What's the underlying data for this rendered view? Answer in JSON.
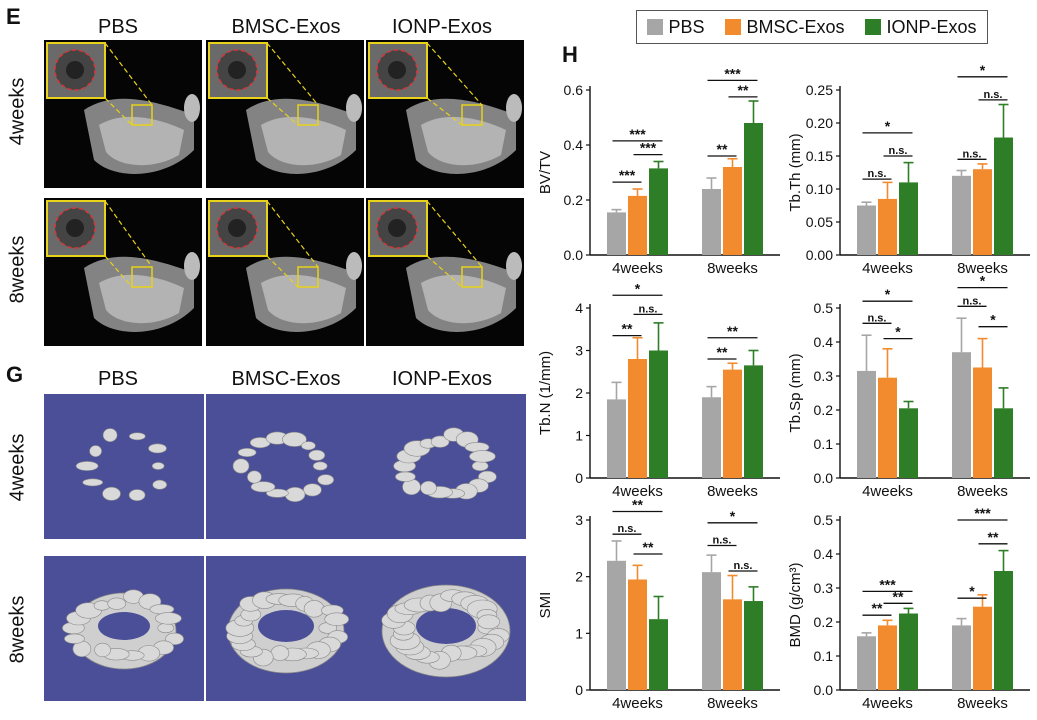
{
  "panel_letters": {
    "e": "E",
    "g": "G",
    "h": "H"
  },
  "image_panels": {
    "groups": [
      "PBS",
      "BMSC-Exos",
      "IONP-Exos"
    ],
    "timepoints": [
      "4weeks",
      "8weeks"
    ]
  },
  "legend": [
    {
      "name": "PBS",
      "color": "#a6a6a6"
    },
    {
      "name": "BMSC-Exos",
      "color": "#f28a2e"
    },
    {
      "name": "IONP-Exos",
      "color": "#2e7d27"
    }
  ],
  "chart_data": [
    {
      "type": "bar",
      "categories": [
        "4weeks",
        "8weeks"
      ],
      "ylabel": "BV/TV",
      "ylim": [
        0,
        0.6
      ],
      "yticks": [
        "0.0",
        "0.2",
        "0.4",
        "0.6"
      ],
      "series": [
        {
          "name": "PBS",
          "values": [
            0.155,
            0.24
          ],
          "err": [
            0.01,
            0.04
          ]
        },
        {
          "name": "BMSC-Exos",
          "values": [
            0.215,
            0.32
          ],
          "err": [
            0.025,
            0.03
          ]
        },
        {
          "name": "IONP-Exos",
          "values": [
            0.315,
            0.48
          ],
          "err": [
            0.025,
            0.08
          ]
        }
      ],
      "sig": [
        {
          "cat": 0,
          "from": 0,
          "to": 1,
          "y": 0.265,
          "label": "***"
        },
        {
          "cat": 0,
          "from": 1,
          "to": 2,
          "y": 0.365,
          "label": "***"
        },
        {
          "cat": 0,
          "from": 0,
          "to": 2,
          "y": 0.415,
          "label": "***"
        },
        {
          "cat": 1,
          "from": 0,
          "to": 1,
          "y": 0.36,
          "label": "**"
        },
        {
          "cat": 1,
          "from": 1,
          "to": 2,
          "y": 0.575,
          "label": "**"
        },
        {
          "cat": 1,
          "from": 0,
          "to": 2,
          "y": 0.635,
          "label": "***"
        }
      ]
    },
    {
      "type": "bar",
      "categories": [
        "4weeks",
        "8weeks"
      ],
      "ylabel": "Tb.Th (mm)",
      "ylim": [
        0,
        0.25
      ],
      "yticks": [
        "0.00",
        "0.05",
        "0.10",
        "0.15",
        "0.20",
        "0.25"
      ],
      "series": [
        {
          "name": "PBS",
          "values": [
            0.075,
            0.12
          ],
          "err": [
            0.005,
            0.008
          ]
        },
        {
          "name": "BMSC-Exos",
          "values": [
            0.085,
            0.13
          ],
          "err": [
            0.025,
            0.008
          ]
        },
        {
          "name": "IONP-Exos",
          "values": [
            0.11,
            0.178
          ],
          "err": [
            0.03,
            0.05
          ]
        }
      ],
      "sig": [
        {
          "cat": 0,
          "from": 0,
          "to": 1,
          "y": 0.115,
          "label": "n.s."
        },
        {
          "cat": 0,
          "from": 1,
          "to": 2,
          "y": 0.15,
          "label": "n.s."
        },
        {
          "cat": 0,
          "from": 0,
          "to": 2,
          "y": 0.185,
          "label": "*"
        },
        {
          "cat": 1,
          "from": 0,
          "to": 1,
          "y": 0.145,
          "label": "n.s."
        },
        {
          "cat": 1,
          "from": 1,
          "to": 2,
          "y": 0.235,
          "label": "n.s."
        },
        {
          "cat": 1,
          "from": 0,
          "to": 2,
          "y": 0.27,
          "label": "*"
        }
      ]
    },
    {
      "type": "bar",
      "categories": [
        "4weeks",
        "8weeks"
      ],
      "ylabel": "Tb.N (1/mm)",
      "ylim": [
        0,
        4
      ],
      "yticks": [
        "0",
        "1",
        "2",
        "3",
        "4"
      ],
      "series": [
        {
          "name": "PBS",
          "values": [
            1.85,
            1.9
          ],
          "err": [
            0.4,
            0.25
          ]
        },
        {
          "name": "BMSC-Exos",
          "values": [
            2.8,
            2.55
          ],
          "err": [
            0.5,
            0.15
          ]
        },
        {
          "name": "IONP-Exos",
          "values": [
            3.0,
            2.65
          ],
          "err": [
            0.65,
            0.35
          ]
        }
      ],
      "sig": [
        {
          "cat": 0,
          "from": 0,
          "to": 1,
          "y": 3.35,
          "label": "**"
        },
        {
          "cat": 0,
          "from": 1,
          "to": 2,
          "y": 3.85,
          "label": "n.s."
        },
        {
          "cat": 0,
          "from": 0,
          "to": 2,
          "y": 4.3,
          "label": "*"
        },
        {
          "cat": 1,
          "from": 0,
          "to": 1,
          "y": 2.8,
          "label": "**"
        },
        {
          "cat": 1,
          "from": 0,
          "to": 2,
          "y": 3.3,
          "label": "**"
        }
      ]
    },
    {
      "type": "bar",
      "categories": [
        "4weeks",
        "8weeks"
      ],
      "ylabel": "Tb.Sp (mm)",
      "ylim": [
        0,
        0.5
      ],
      "yticks": [
        "0.0",
        "0.1",
        "0.2",
        "0.3",
        "0.4",
        "0.5"
      ],
      "series": [
        {
          "name": "PBS",
          "values": [
            0.315,
            0.37
          ],
          "err": [
            0.105,
            0.1
          ]
        },
        {
          "name": "BMSC-Exos",
          "values": [
            0.295,
            0.325
          ],
          "err": [
            0.085,
            0.085
          ]
        },
        {
          "name": "IONP-Exos",
          "values": [
            0.205,
            0.205
          ],
          "err": [
            0.02,
            0.06
          ]
        }
      ],
      "sig": [
        {
          "cat": 0,
          "from": 0,
          "to": 1,
          "y": 0.455,
          "label": "n.s."
        },
        {
          "cat": 0,
          "from": 1,
          "to": 2,
          "y": 0.41,
          "label": "*"
        },
        {
          "cat": 0,
          "from": 0,
          "to": 2,
          "y": 0.52,
          "label": "*"
        },
        {
          "cat": 1,
          "from": 0,
          "to": 1,
          "y": 0.505,
          "label": "n.s."
        },
        {
          "cat": 1,
          "from": 1,
          "to": 2,
          "y": 0.445,
          "label": "*"
        },
        {
          "cat": 1,
          "from": 0,
          "to": 2,
          "y": 0.56,
          "label": "*"
        }
      ]
    },
    {
      "type": "bar",
      "categories": [
        "4weeks",
        "8weeks"
      ],
      "ylabel": "SMI",
      "ylim": [
        0,
        3
      ],
      "yticks": [
        "0",
        "1",
        "2",
        "3"
      ],
      "series": [
        {
          "name": "PBS",
          "values": [
            2.28,
            2.08
          ],
          "err": [
            0.35,
            0.3
          ]
        },
        {
          "name": "BMSC-Exos",
          "values": [
            1.95,
            1.6
          ],
          "err": [
            0.25,
            0.42
          ]
        },
        {
          "name": "IONP-Exos",
          "values": [
            1.25,
            1.57
          ],
          "err": [
            0.4,
            0.25
          ]
        }
      ],
      "sig": [
        {
          "cat": 0,
          "from": 0,
          "to": 1,
          "y": 2.75,
          "label": "n.s."
        },
        {
          "cat": 0,
          "from": 1,
          "to": 2,
          "y": 2.4,
          "label": "**"
        },
        {
          "cat": 0,
          "from": 0,
          "to": 2,
          "y": 3.15,
          "label": "**"
        },
        {
          "cat": 1,
          "from": 0,
          "to": 1,
          "y": 2.55,
          "label": "n.s."
        },
        {
          "cat": 1,
          "from": 1,
          "to": 2,
          "y": 2.1,
          "label": "n.s."
        },
        {
          "cat": 1,
          "from": 0,
          "to": 2,
          "y": 2.95,
          "label": "*"
        }
      ]
    },
    {
      "type": "bar",
      "categories": [
        "4weeks",
        "8weeks"
      ],
      "ylabel": "BMD (g/cm³)",
      "ylim": [
        0,
        0.5
      ],
      "yticks": [
        "0.0",
        "0.1",
        "0.2",
        "0.3",
        "0.4",
        "0.5"
      ],
      "series": [
        {
          "name": "PBS",
          "values": [
            0.158,
            0.19
          ],
          "err": [
            0.01,
            0.02
          ]
        },
        {
          "name": "BMSC-Exos",
          "values": [
            0.19,
            0.245
          ],
          "err": [
            0.015,
            0.035
          ]
        },
        {
          "name": "IONP-Exos",
          "values": [
            0.225,
            0.35
          ],
          "err": [
            0.015,
            0.06
          ]
        }
      ],
      "sig": [
        {
          "cat": 0,
          "from": 0,
          "to": 1,
          "y": 0.22,
          "label": "**"
        },
        {
          "cat": 0,
          "from": 1,
          "to": 2,
          "y": 0.255,
          "label": "**"
        },
        {
          "cat": 0,
          "from": 0,
          "to": 2,
          "y": 0.29,
          "label": "***"
        },
        {
          "cat": 1,
          "from": 0,
          "to": 1,
          "y": 0.27,
          "label": "*"
        },
        {
          "cat": 1,
          "from": 1,
          "to": 2,
          "y": 0.43,
          "label": "**"
        },
        {
          "cat": 1,
          "from": 0,
          "to": 2,
          "y": 0.5,
          "label": "***"
        }
      ]
    }
  ]
}
